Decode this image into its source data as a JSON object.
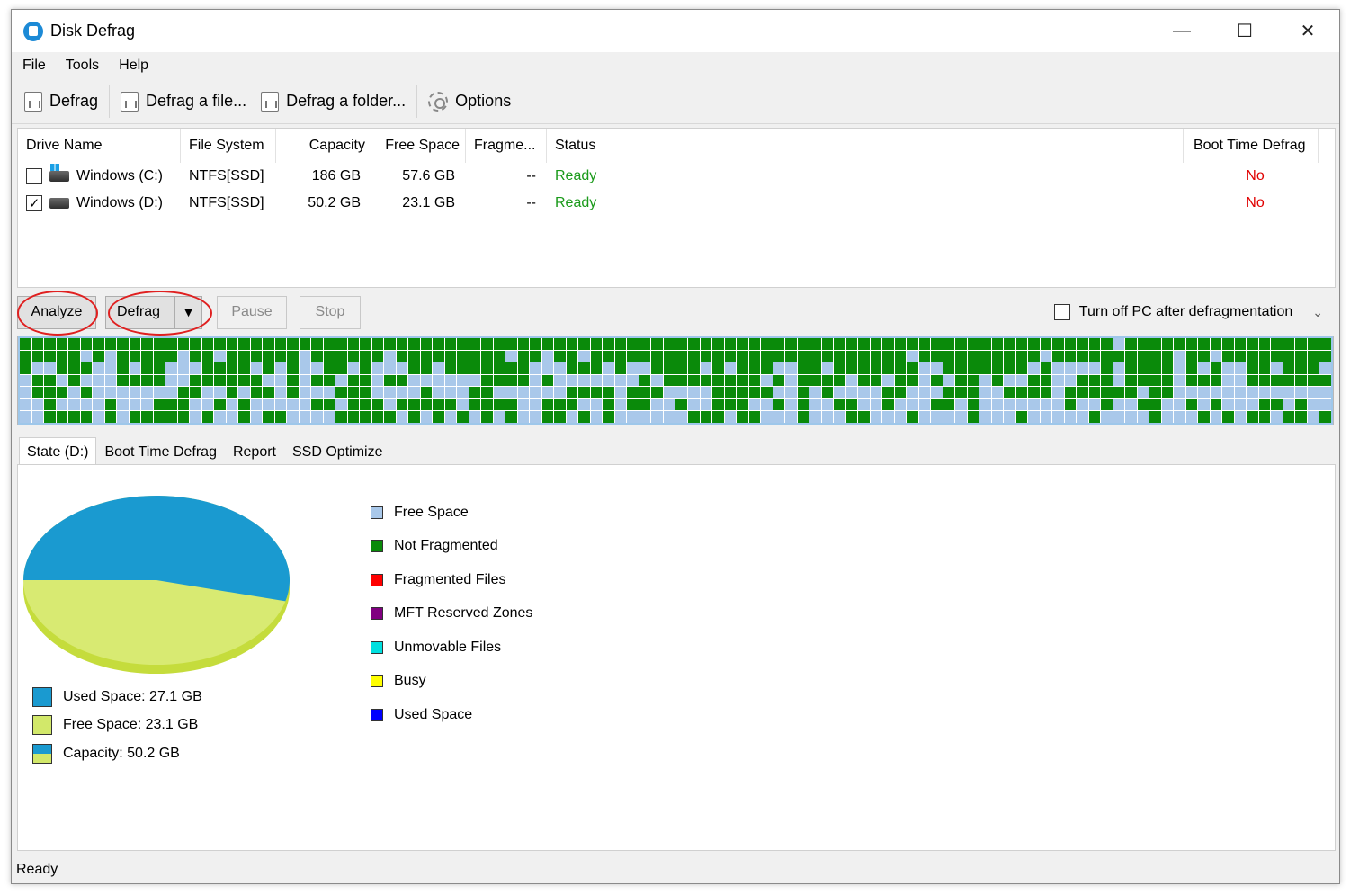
{
  "window": {
    "title": "Disk Defrag",
    "controls": {
      "minimize": "—",
      "maximize": "☐",
      "close": "✕"
    }
  },
  "menu": [
    "File",
    "Tools",
    "Help"
  ],
  "toolbar": {
    "defrag": "Defrag",
    "defrag_file": "Defrag a file...",
    "defrag_folder": "Defrag a folder...",
    "options": "Options"
  },
  "drives": {
    "headers": [
      "Drive Name",
      "File System",
      "Capacity",
      "Free Space",
      "Fragme...",
      "Status",
      "Boot Time Defrag"
    ],
    "rows": [
      {
        "checked": "",
        "name": "Windows (C:)",
        "fs": "NTFS[SSD]",
        "capacity": "186 GB",
        "free": "57.6 GB",
        "frag": "--",
        "status": "Ready",
        "boot": "No"
      },
      {
        "checked": "✓",
        "name": "Windows (D:)",
        "fs": "NTFS[SSD]",
        "capacity": "50.2 GB",
        "free": "23.1 GB",
        "frag": "--",
        "status": "Ready",
        "boot": "No"
      }
    ]
  },
  "actions": {
    "analyze": "Analyze",
    "defrag": "Defrag",
    "defrag_arrow": "▼",
    "pause": "Pause",
    "stop": "Stop",
    "turn_off": "Turn off PC after defragmentation",
    "expand": "⌄"
  },
  "tabs": [
    "State (D:)",
    "Boot Time Defrag",
    "Report",
    "SSD Optimize"
  ],
  "state": {
    "used_label": "Used Space: 27.1 GB",
    "free_label": "Free Space: 23.1 GB",
    "capacity_label": "Capacity: 50.2 GB",
    "used_fraction": 0.54,
    "colors": {
      "used": "#1a9ad0",
      "free": "#d2e86a"
    }
  },
  "legend": [
    {
      "label": "Free Space",
      "color": "#a9c8ea"
    },
    {
      "label": "Not Fragmented",
      "color": "#0a8a0a"
    },
    {
      "label": "Fragmented Files",
      "color": "#ff0000"
    },
    {
      "label": "MFT Reserved Zones",
      "color": "#800080"
    },
    {
      "label": "Unmovable Files",
      "color": "#00e0e0"
    },
    {
      "label": "Busy",
      "color": "#ffff00"
    },
    {
      "label": "Used Space",
      "color": "#0000ff"
    }
  ],
  "status_bar": "Ready"
}
